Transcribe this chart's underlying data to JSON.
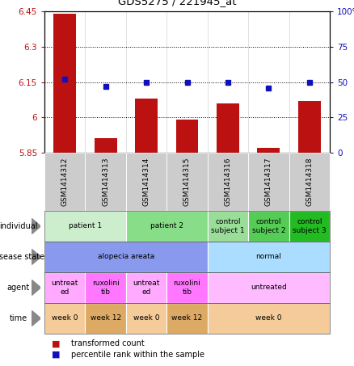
{
  "title": "GDS5275 / 221945_at",
  "samples": [
    "GSM1414312",
    "GSM1414313",
    "GSM1414314",
    "GSM1414315",
    "GSM1414316",
    "GSM1414317",
    "GSM1414318"
  ],
  "transformed_count": [
    6.44,
    5.91,
    6.08,
    5.99,
    6.06,
    5.87,
    6.07
  ],
  "percentile_rank": [
    52,
    47,
    50,
    50,
    50,
    46,
    50
  ],
  "bar_bottom": 5.85,
  "ylim_left": [
    5.85,
    6.45
  ],
  "ylim_right": [
    0,
    100
  ],
  "yticks_left": [
    5.85,
    6.0,
    6.15,
    6.3,
    6.45
  ],
  "yticks_right": [
    0,
    25,
    50,
    75,
    100
  ],
  "ytick_labels_left": [
    "5.85",
    "6",
    "6.15",
    "6.3",
    "6.45"
  ],
  "ytick_labels_right": [
    "0",
    "25",
    "50",
    "75",
    "100%"
  ],
  "bar_color": "#bb1111",
  "dot_color": "#1111bb",
  "annotation_rows": [
    {
      "label": "individual",
      "cells": [
        {
          "text": "patient 1",
          "colspan": 2,
          "color": "#cceecc"
        },
        {
          "text": "patient 2",
          "colspan": 2,
          "color": "#88dd88"
        },
        {
          "text": "control\nsubject 1",
          "colspan": 1,
          "color": "#99dd99"
        },
        {
          "text": "control\nsubject 2",
          "colspan": 1,
          "color": "#55cc55"
        },
        {
          "text": "control\nsubject 3",
          "colspan": 1,
          "color": "#22bb22"
        }
      ]
    },
    {
      "label": "disease state",
      "cells": [
        {
          "text": "alopecia areata",
          "colspan": 4,
          "color": "#8899ee"
        },
        {
          "text": "normal",
          "colspan": 3,
          "color": "#aaddff"
        }
      ]
    },
    {
      "label": "agent",
      "cells": [
        {
          "text": "untreat\ned",
          "colspan": 1,
          "color": "#ffaaff"
        },
        {
          "text": "ruxolini\ntib",
          "colspan": 1,
          "color": "#ff77ff"
        },
        {
          "text": "untreat\ned",
          "colspan": 1,
          "color": "#ffaaff"
        },
        {
          "text": "ruxolini\ntib",
          "colspan": 1,
          "color": "#ff77ff"
        },
        {
          "text": "untreated",
          "colspan": 3,
          "color": "#ffbbff"
        }
      ]
    },
    {
      "label": "time",
      "cells": [
        {
          "text": "week 0",
          "colspan": 1,
          "color": "#f5cc99"
        },
        {
          "text": "week 12",
          "colspan": 1,
          "color": "#ddaa66"
        },
        {
          "text": "week 0",
          "colspan": 1,
          "color": "#f5cc99"
        },
        {
          "text": "week 12",
          "colspan": 1,
          "color": "#ddaa66"
        },
        {
          "text": "week 0",
          "colspan": 3,
          "color": "#f5cc99"
        }
      ]
    }
  ]
}
